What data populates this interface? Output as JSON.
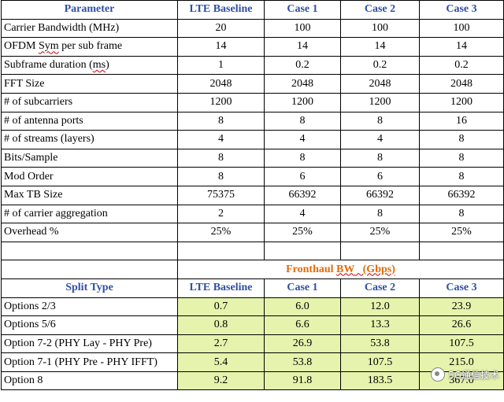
{
  "header": [
    "Parameter",
    "LTE Baseline",
    "Case 1",
    "Case 2",
    "Case 3"
  ],
  "params": [
    {
      "label": "Carrier Bandwidth (MHz)",
      "values": [
        "20",
        "100",
        "100",
        "100"
      ]
    },
    {
      "label_pre": "OFDM ",
      "label_wavy": "Sym",
      "label_post": " per sub frame",
      "values": [
        "14",
        "14",
        "14",
        "14"
      ]
    },
    {
      "label_pre": "Subframe duration (",
      "label_wavy": "ms",
      "label_post": ")",
      "values": [
        "1",
        "0.2",
        "0.2",
        "0.2"
      ]
    },
    {
      "label": "FFT Size",
      "values": [
        "2048",
        "2048",
        "2048",
        "2048"
      ]
    },
    {
      "label": "# of subcarriers",
      "values": [
        "1200",
        "1200",
        "1200",
        "1200"
      ]
    },
    {
      "label": "# of antenna ports",
      "values": [
        "8",
        "8",
        "8",
        "16"
      ]
    },
    {
      "label": "# of streams (layers)",
      "values": [
        "4",
        "4",
        "4",
        "8"
      ]
    },
    {
      "label": "Bits/Sample",
      "values": [
        "8",
        "8",
        "8",
        "8"
      ]
    },
    {
      "label": "Mod Order",
      "values": [
        "8",
        "6",
        "6",
        "8"
      ]
    },
    {
      "label": "Max TB Size",
      "values": [
        "75375",
        "66392",
        "66392",
        "66392"
      ]
    },
    {
      "label": "# of carrier aggregation",
      "values": [
        "2",
        "4",
        "8",
        "8"
      ]
    },
    {
      "label": "Overhead %",
      "values": [
        "25%",
        "25%",
        "25%",
        "25%"
      ]
    }
  ],
  "fronthaul": {
    "pre": "Fronthaul ",
    "wavy": "BW",
    "post": "   (Gbps)"
  },
  "split_header": [
    "Split Type",
    "LTE Baseline",
    "Case 1",
    "Case 2",
    "Case 3"
  ],
  "splits": [
    {
      "label": "Options 2/3",
      "values": [
        "0.7",
        "6.0",
        "12.0",
        "23.9"
      ]
    },
    {
      "label": "Options 5/6",
      "values": [
        "0.8",
        "6.6",
        "13.3",
        "26.6"
      ]
    },
    {
      "label": "Option 7-2 (PHY Lay - PHY Pre)",
      "values": [
        "2.7",
        "26.9",
        "53.8",
        "107.5"
      ]
    },
    {
      "label": "Option 7-1 (PHY Pre - PHY IFFT)",
      "values": [
        "5.4",
        "53.8",
        "107.5",
        "215.0"
      ]
    },
    {
      "label": "Option 8",
      "values": [
        "9.2",
        "91.8",
        "183.5",
        "367.0"
      ]
    }
  ],
  "watermark": "5G通信技术",
  "colors": {
    "header_blue": "#2f4fa3",
    "fronthaul_orange": "#e26b0a",
    "highlight_green": "#e5f3ad"
  }
}
